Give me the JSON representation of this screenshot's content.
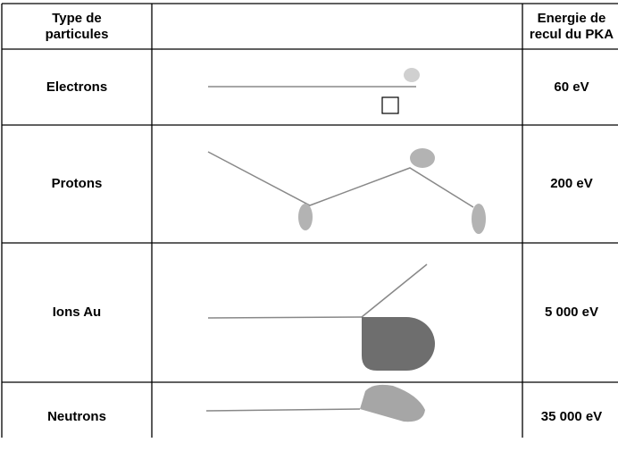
{
  "header": {
    "particle": [
      "Type de",
      "particules"
    ],
    "energy": [
      "Energie de",
      "recul du PKA"
    ]
  },
  "rows": [
    {
      "particle": "Electrons",
      "energy": "60 eV"
    },
    {
      "particle": "Protons",
      "energy": "200 eV"
    },
    {
      "particle": "Ions Au",
      "energy": "5 000 eV"
    },
    {
      "particle": "Neutrons",
      "energy": "35 000 eV"
    }
  ]
}
